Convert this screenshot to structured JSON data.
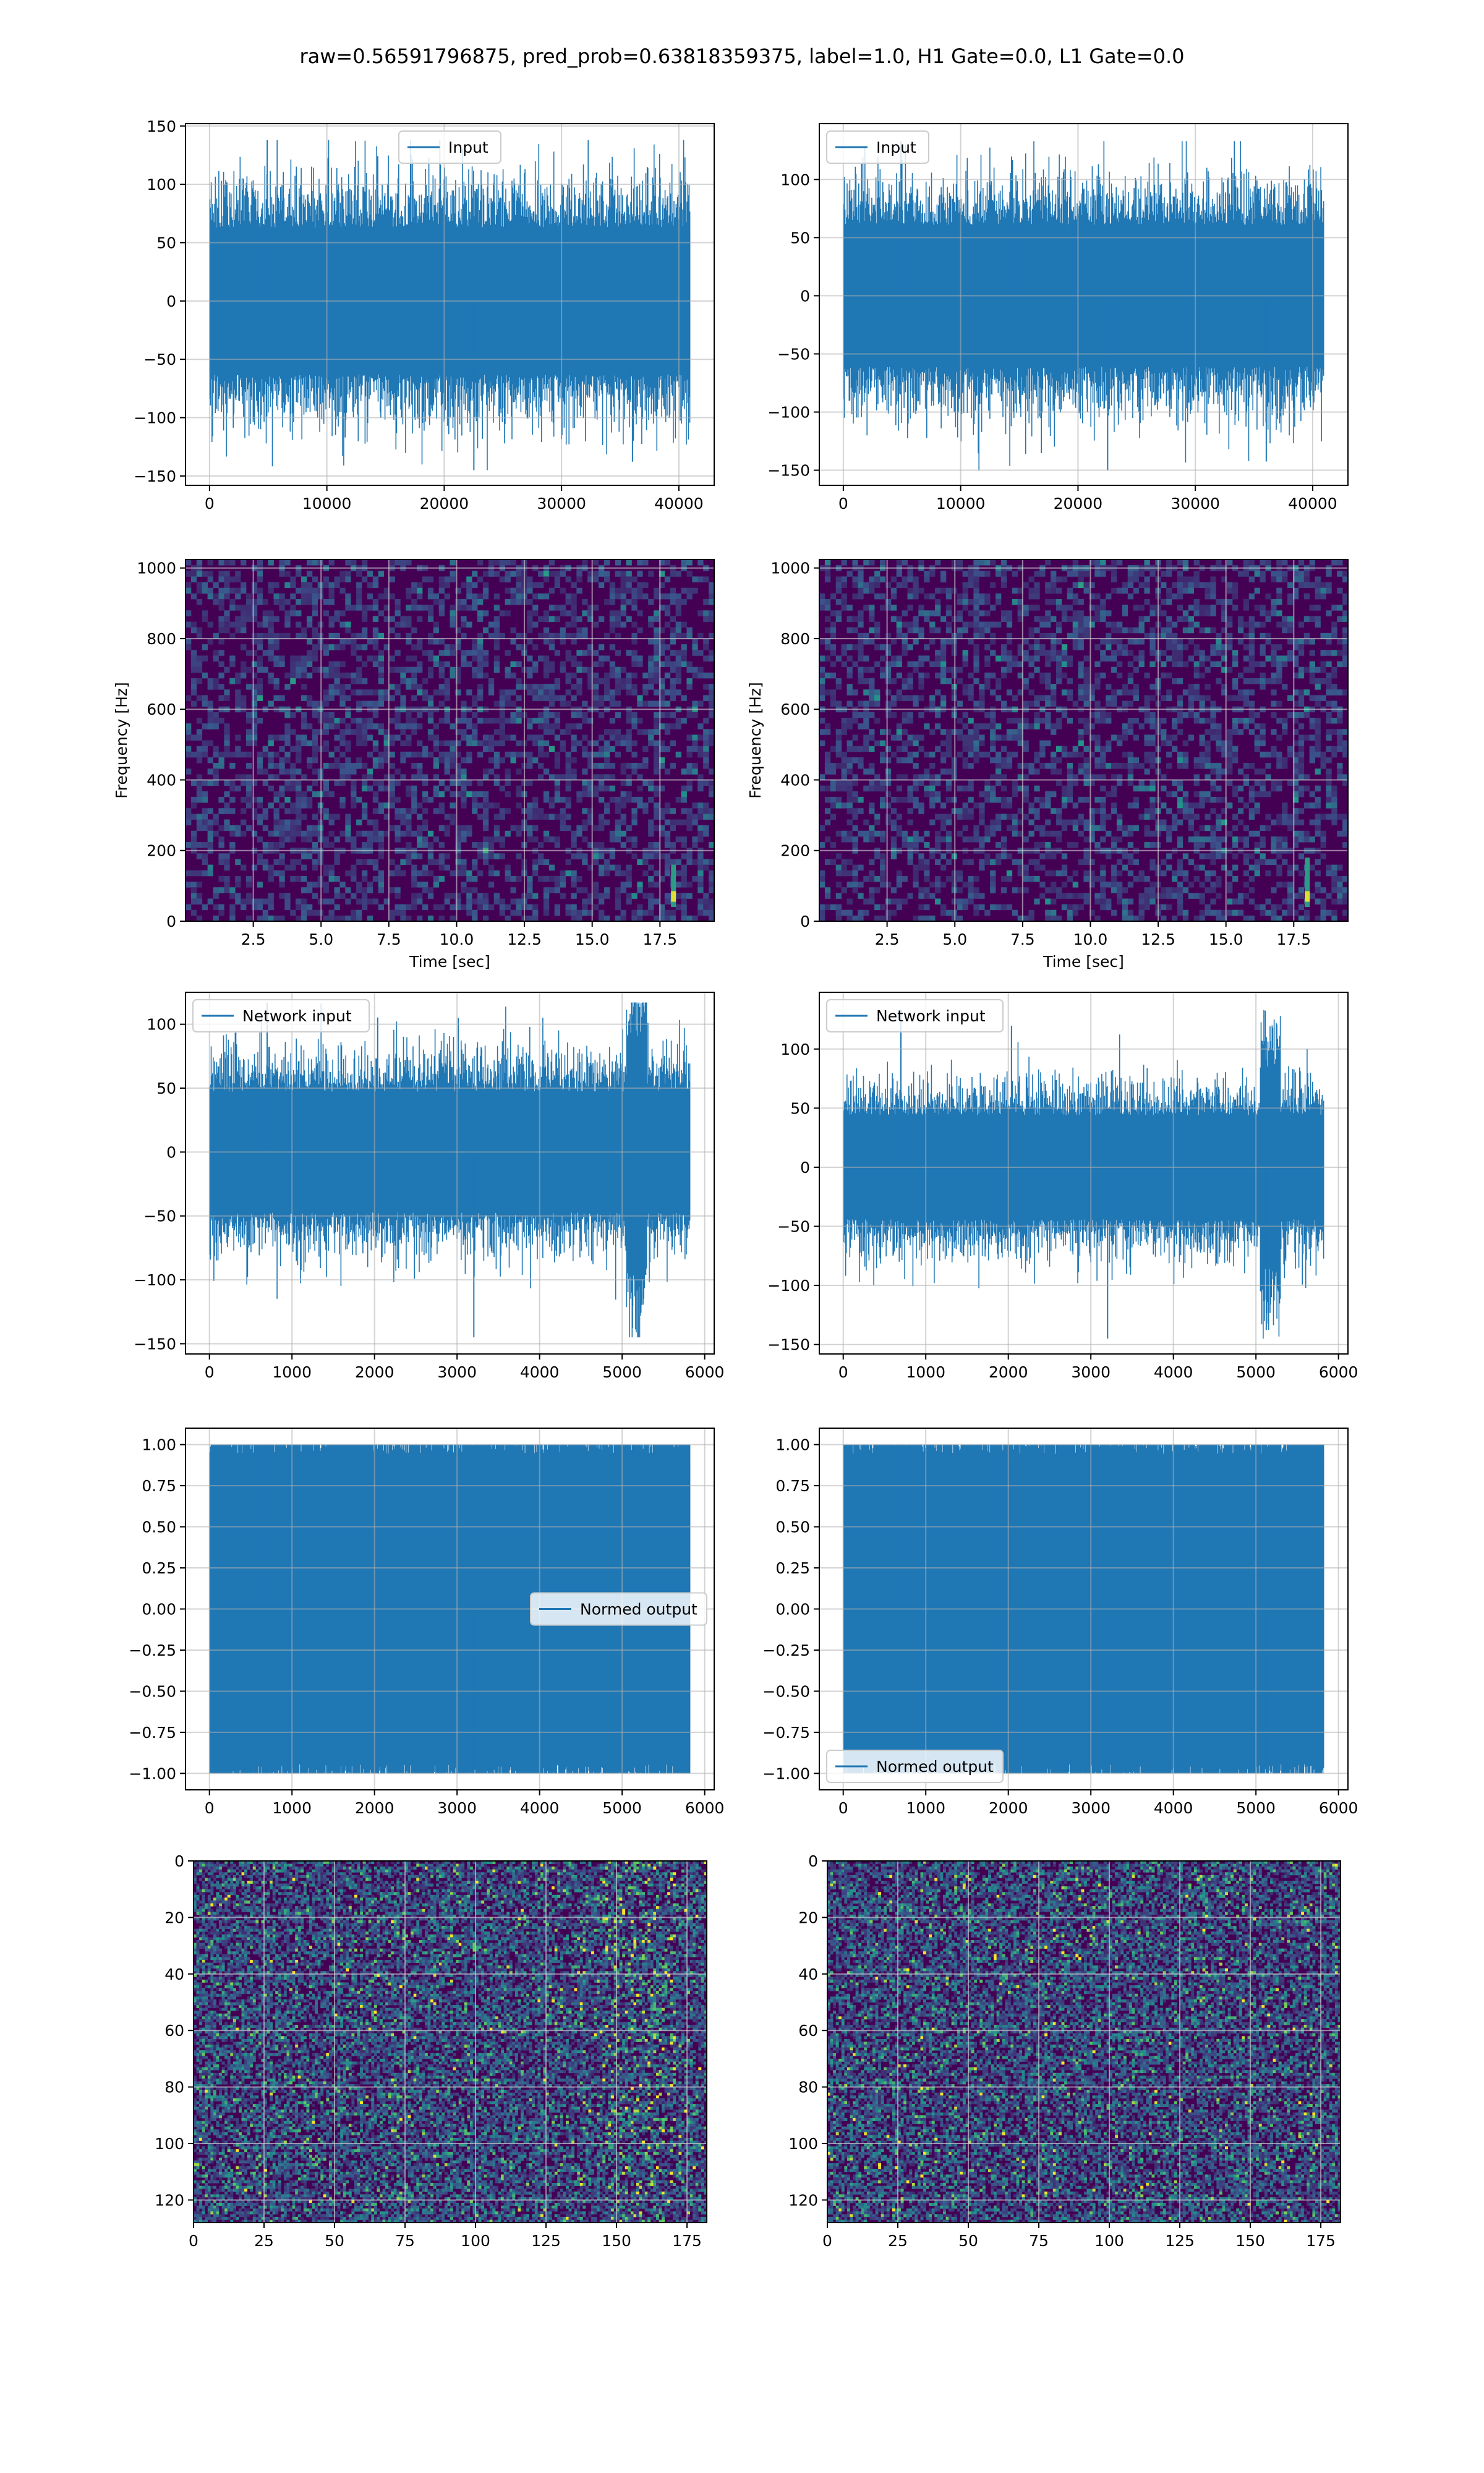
{
  "figure": {
    "title": "raw=0.56591796875, pred_prob=0.63818359375, label=1.0, H1 Gate=0.0, L1 Gate=0.0"
  },
  "colors": {
    "line": "#1f77b4",
    "grid": "#b0b0b0",
    "viridis": [
      "#440154",
      "#3b528b",
      "#21918c",
      "#5ec962",
      "#fde725"
    ]
  },
  "chart_data": [
    {
      "id": "h1-input",
      "type": "line",
      "series": [
        {
          "name": "Input",
          "envelope": {
            "x_start": 0,
            "x_end": 40960,
            "amplitude": 60,
            "extremes": [
              -145,
              138
            ]
          }
        }
      ],
      "xlim": [
        -2048,
        43008
      ],
      "ylim": [
        -158,
        152
      ],
      "xticks": [
        0,
        10000,
        20000,
        30000,
        40000
      ],
      "yticks": [
        -150,
        -100,
        -50,
        0,
        50,
        100,
        150
      ],
      "legend": "upper center",
      "grid": true
    },
    {
      "id": "l1-input",
      "type": "line",
      "series": [
        {
          "name": "Input",
          "envelope": {
            "x_start": 0,
            "x_end": 40960,
            "amplitude": 58,
            "extremes": [
              -150,
              133
            ]
          }
        }
      ],
      "xlim": [
        -2048,
        43008
      ],
      "ylim": [
        -163,
        148
      ],
      "xticks": [
        0,
        10000,
        20000,
        30000,
        40000
      ],
      "yticks": [
        -150,
        -100,
        -50,
        0,
        50,
        100
      ],
      "legend": "upper left",
      "grid": true
    },
    {
      "id": "h1-spectrogram",
      "type": "heatmap",
      "xlabel": "Time [sec]",
      "ylabel": "Frequency [Hz]",
      "xlim": [
        0,
        19.5
      ],
      "ylim": [
        0,
        1024
      ],
      "xticks": [
        2.5,
        5.0,
        7.5,
        10.0,
        12.5,
        15.0,
        17.5
      ],
      "yticks": [
        0,
        200,
        400,
        600,
        800,
        1000
      ],
      "hotspot": {
        "time": 18.0,
        "freq_range": [
          40,
          160
        ]
      },
      "grid": true
    },
    {
      "id": "l1-spectrogram",
      "type": "heatmap",
      "xlabel": "Time [sec]",
      "ylabel": "Frequency [Hz]",
      "xlim": [
        0,
        19.5
      ],
      "ylim": [
        0,
        1024
      ],
      "xticks": [
        2.5,
        5.0,
        7.5,
        10.0,
        12.5,
        15.0,
        17.5
      ],
      "yticks": [
        0,
        200,
        400,
        600,
        800,
        1000
      ],
      "hotspot": {
        "time": 18.0,
        "freq_range": [
          40,
          180
        ]
      },
      "grid": true
    },
    {
      "id": "h1-network-input",
      "type": "line",
      "series": [
        {
          "name": "Network input",
          "envelope": {
            "x_start": 0,
            "x_end": 5824,
            "amplitude": 45,
            "burst": [
              5050,
              5300
            ],
            "extremes": [
              -145,
              117
            ]
          }
        }
      ],
      "xlim": [
        -290,
        6115
      ],
      "ylim": [
        -158,
        125
      ],
      "xticks": [
        0,
        1000,
        2000,
        3000,
        4000,
        5000,
        6000
      ],
      "yticks": [
        -150,
        -100,
        -50,
        0,
        50,
        100
      ],
      "legend": "upper left",
      "grid": true
    },
    {
      "id": "l1-network-input",
      "type": "line",
      "series": [
        {
          "name": "Network input",
          "envelope": {
            "x_start": 0,
            "x_end": 5824,
            "amplitude": 42,
            "burst": [
              5050,
              5300
            ],
            "extremes": [
              -145,
              133
            ]
          }
        }
      ],
      "xlim": [
        -290,
        6115
      ],
      "ylim": [
        -158,
        148
      ],
      "xticks": [
        0,
        1000,
        2000,
        3000,
        4000,
        5000,
        6000
      ],
      "yticks": [
        -150,
        -100,
        -50,
        0,
        50,
        100
      ],
      "legend": "upper left",
      "grid": true
    },
    {
      "id": "h1-normed-output",
      "type": "line",
      "series": [
        {
          "name": "Normed output",
          "envelope": {
            "x_start": 0,
            "x_end": 5824,
            "amplitude": 0.9,
            "extremes": [
              -1.0,
              1.0
            ]
          }
        }
      ],
      "xlim": [
        -290,
        6115
      ],
      "ylim": [
        -1.1,
        1.1
      ],
      "xticks": [
        0,
        1000,
        2000,
        3000,
        4000,
        5000,
        6000
      ],
      "yticks": [
        -1.0,
        -0.75,
        -0.5,
        -0.25,
        0.0,
        0.25,
        0.5,
        0.75,
        1.0
      ],
      "legend": "center right",
      "grid": true
    },
    {
      "id": "l1-normed-output",
      "type": "line",
      "series": [
        {
          "name": "Normed output",
          "envelope": {
            "x_start": 0,
            "x_end": 5824,
            "amplitude": 0.9,
            "extremes": [
              -1.0,
              1.0
            ]
          }
        }
      ],
      "xlim": [
        -290,
        6115
      ],
      "ylim": [
        -1.1,
        1.1
      ],
      "xticks": [
        0,
        1000,
        2000,
        3000,
        4000,
        5000,
        6000
      ],
      "yticks": [
        -1.0,
        -0.75,
        -0.5,
        -0.25,
        0.0,
        0.25,
        0.5,
        0.75,
        1.0
      ],
      "legend": "lower left",
      "grid": true
    },
    {
      "id": "h1-feature-map",
      "type": "heatmap",
      "xlim": [
        0,
        182
      ],
      "ylim": [
        128,
        0
      ],
      "y_inverted": true,
      "xticks": [
        0,
        25,
        50,
        75,
        100,
        125,
        150,
        175
      ],
      "yticks": [
        0,
        20,
        40,
        60,
        80,
        100,
        120
      ],
      "bright_columns": [
        145,
        170
      ],
      "grid": true
    },
    {
      "id": "l1-feature-map",
      "type": "heatmap",
      "xlim": [
        0,
        182
      ],
      "ylim": [
        128,
        0
      ],
      "y_inverted": true,
      "xticks": [
        0,
        25,
        50,
        75,
        100,
        125,
        150,
        175
      ],
      "yticks": [
        0,
        20,
        40,
        60,
        80,
        100,
        120
      ],
      "bright_columns": [],
      "grid": true
    }
  ]
}
